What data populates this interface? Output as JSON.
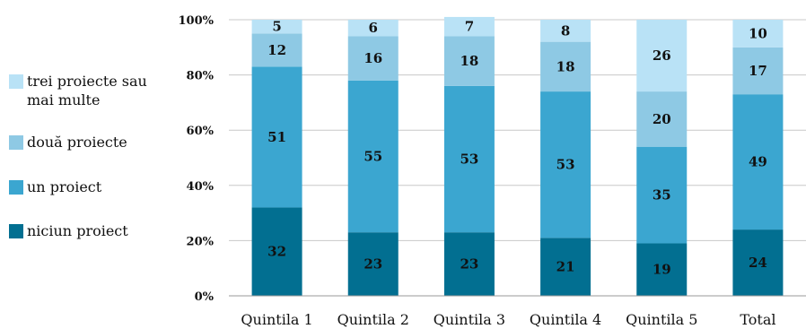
{
  "chart_data": {
    "type": "bar",
    "stacked": true,
    "title": "",
    "xlabel": "",
    "ylabel": "",
    "ylim": [
      0,
      100
    ],
    "yticks": [
      "0%",
      "20%",
      "40%",
      "60%",
      "80%",
      "100%"
    ],
    "categories": [
      "Quintila 1",
      "Quintila 2",
      "Quintila 3",
      "Quintila 4",
      "Quintila 5",
      "Total"
    ],
    "series": [
      {
        "name": "niciun proiect",
        "color": "#026f91",
        "values": [
          32,
          23,
          23,
          21,
          19,
          24
        ]
      },
      {
        "name": "un proiect",
        "color": "#3ba6d0",
        "values": [
          51,
          55,
          53,
          53,
          35,
          49
        ]
      },
      {
        "name": "două proiecte",
        "color": "#8ec9e4",
        "values": [
          12,
          16,
          18,
          18,
          20,
          17
        ]
      },
      {
        "name": "trei proiecte sau mai multe",
        "color": "#b9e2f6",
        "values": [
          5,
          6,
          7,
          8,
          26,
          10
        ]
      }
    ],
    "legend_position": "left"
  }
}
